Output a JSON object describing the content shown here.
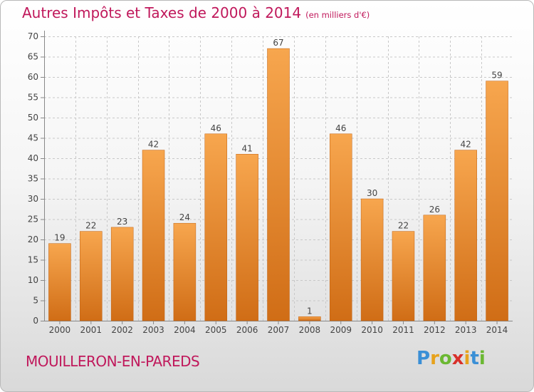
{
  "header": {
    "title": "Autres Impôts et Taxes de 2000 à 2014",
    "subtitle": "(en milliers d'€)"
  },
  "footer": {
    "city": "MOUILLERON-EN-PAREDS",
    "logo_letters": [
      "P",
      "r",
      "o",
      "x",
      "i",
      "t",
      "i"
    ],
    "logo_colors": [
      "#3a8fd6",
      "#e7a21c",
      "#6bb832",
      "#d8302a",
      "#e7a21c",
      "#3a8fd6",
      "#6bb832"
    ]
  },
  "colors": {
    "bar_light": "#f7a64e",
    "bar_dark": "#d06d16",
    "title": "#c0185b",
    "grid": "#c8c8c8"
  },
  "chart_data": {
    "type": "bar",
    "title": "Autres Impôts et Taxes de 2000 à 2014",
    "subtitle": "(en milliers d'€)",
    "categories": [
      "2000",
      "2001",
      "2002",
      "2003",
      "2004",
      "2005",
      "2006",
      "2007",
      "2008",
      "2009",
      "2010",
      "2011",
      "2012",
      "2013",
      "2014"
    ],
    "values": [
      19,
      22,
      23,
      42,
      24,
      46,
      41,
      67,
      1,
      46,
      30,
      22,
      26,
      42,
      59
    ],
    "ylim": [
      0,
      70
    ],
    "yticks": [
      0,
      5,
      10,
      15,
      20,
      25,
      30,
      35,
      40,
      45,
      50,
      55,
      60,
      65,
      70
    ],
    "grid": true,
    "xlabel": "",
    "ylabel": ""
  }
}
